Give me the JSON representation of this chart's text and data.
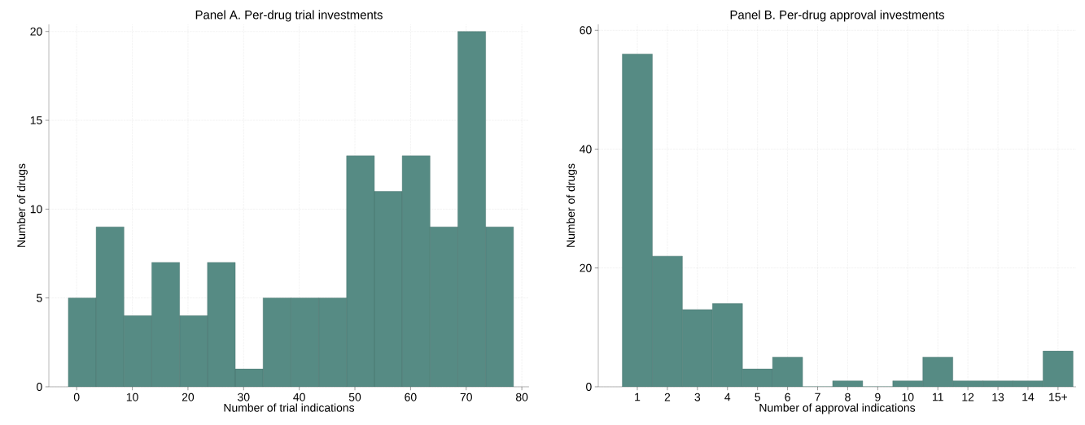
{
  "chart_data": [
    {
      "type": "histogram",
      "title": "Panel A. Per-drug trial investments",
      "xlabel": "Number of trial indications",
      "ylabel": "Number of drugs",
      "bins": [
        -1.5,
        3.5,
        8.5,
        13.5,
        18.5,
        23.5,
        28.5,
        33.5,
        38.5,
        43.5,
        48.5,
        53.5,
        58.5,
        63.5,
        68.5,
        73.5,
        78.5
      ],
      "values": [
        5,
        9,
        4,
        7,
        4,
        7,
        1,
        5,
        5,
        5,
        13,
        11,
        13,
        9,
        20,
        9
      ],
      "color": "#568b84",
      "xlim": [
        -5,
        81.3
      ],
      "xticks": [
        0,
        10,
        20,
        30,
        40,
        50,
        60,
        70,
        80
      ],
      "ylim": [
        0,
        20.4
      ],
      "yticks": [
        0,
        5,
        10,
        15,
        20
      ],
      "grid": true
    },
    {
      "type": "bar",
      "title": "Panel B. Per-drug approval investments",
      "xlabel": "Number of approval indications",
      "ylabel": "Number of drugs",
      "categories": [
        "1",
        "2",
        "3",
        "4",
        "5",
        "6",
        "7",
        "8",
        "9",
        "10",
        "11",
        "12",
        "13",
        "14",
        "15+"
      ],
      "values": [
        56,
        22,
        13,
        14,
        3,
        5,
        0,
        1,
        0,
        1,
        5,
        1,
        1,
        1,
        6
      ],
      "color": "#568b84",
      "ylim": [
        0,
        61
      ],
      "yticks": [
        0,
        20,
        40,
        60
      ],
      "grid": true
    }
  ]
}
